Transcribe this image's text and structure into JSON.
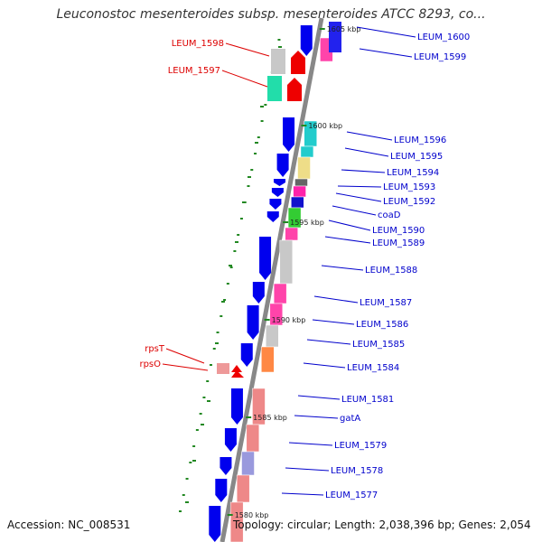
{
  "title": "Leuconostoc mesenteroides subsp. mesenteroides ATCC 8293, co...",
  "footer": {
    "accession": "Accession: NC_008531",
    "summary": "Topology: circular; Length: 2,038,396 bp; Genes: 2,054"
  },
  "colors": {
    "backbone": "#888888",
    "forward_gene": "#0000ee",
    "reverse_gene": "#ee0000",
    "forward_label": "#0000cc",
    "reverse_label": "#dd0000",
    "tick": "#228822"
  },
  "kbp_markers": [
    "1605 kbp",
    "1600 kbp",
    "1595 kbp",
    "1590 kbp",
    "1585 kbp",
    "1580 kbp"
  ],
  "forward_labels": [
    "LEUM_1600",
    "LEUM_1599",
    "LEUM_1596",
    "LEUM_1595",
    "LEUM_1594",
    "LEUM_1593",
    "LEUM_1592",
    "coaD",
    "LEUM_1590",
    "LEUM_1589",
    "LEUM_1588",
    "LEUM_1587",
    "LEUM_1586",
    "LEUM_1585",
    "LEUM_1584",
    "LEUM_1581",
    "gatA",
    "LEUM_1579",
    "LEUM_1578",
    "LEUM_1577"
  ],
  "reverse_labels": [
    "LEUM_1598",
    "LEUM_1597",
    "rpsT",
    "rpsO"
  ]
}
